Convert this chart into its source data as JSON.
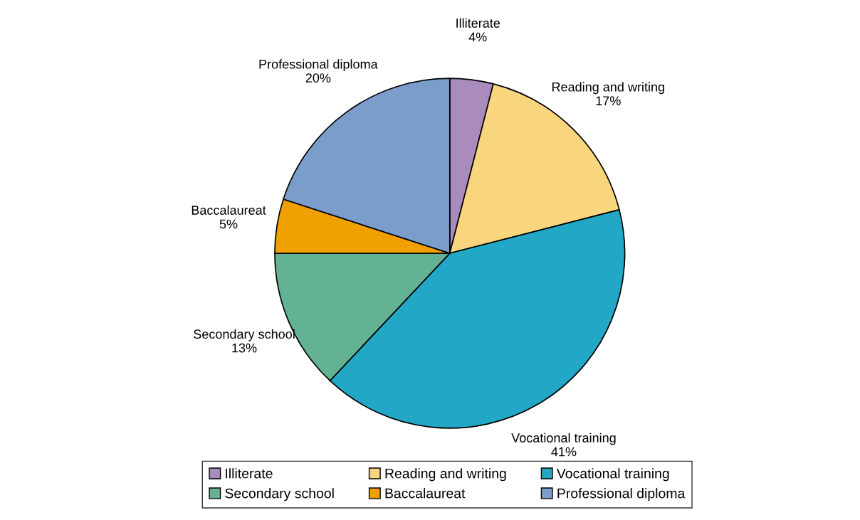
{
  "chart_data": {
    "type": "pie",
    "categories": [
      "Illiterate",
      "Reading and writing",
      "Vocational training",
      "Secondary school",
      "Baccalaureat",
      "Professional diploma"
    ],
    "values": [
      4,
      17,
      41,
      13,
      5,
      20
    ],
    "value_labels": [
      "4%",
      "17%",
      "41%",
      "13%",
      "5%",
      "20%"
    ],
    "colors": [
      "#a98bbd",
      "#f9d57e",
      "#22a7c6",
      "#63b293",
      "#f0a000",
      "#7b9dc9"
    ],
    "legend": "bottom"
  }
}
